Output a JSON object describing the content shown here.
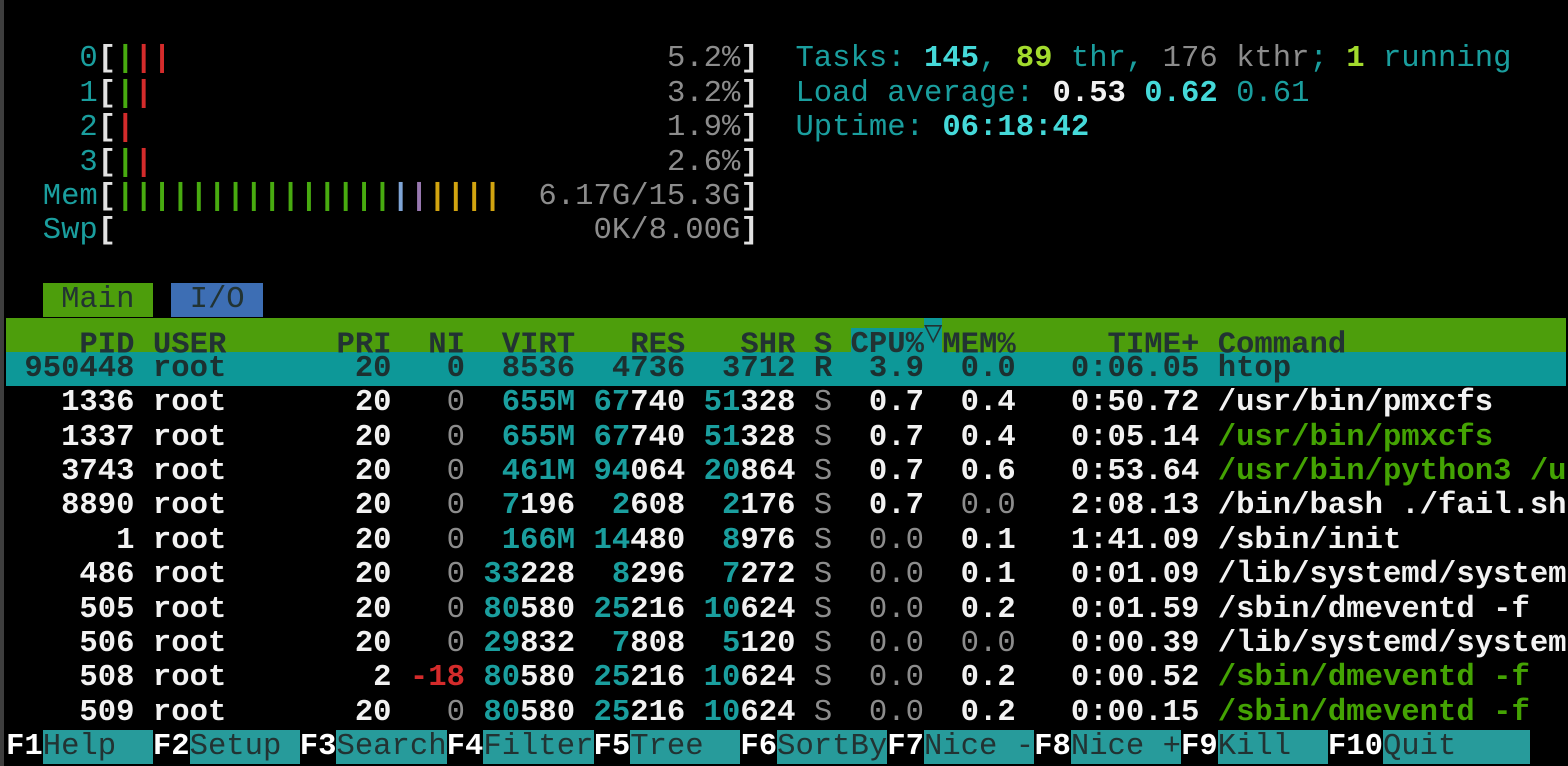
{
  "colors": {
    "background": "#000000",
    "text_white": "#f2f2f2",
    "text_gray": "#8c8c8c",
    "teal": "#1a9e9e",
    "bright_cyan": "#45d9d9",
    "lime_green": "#a3db2d",
    "command_green": "#44a303",
    "red": "#d42b2b",
    "header_green_bg": "#4d9e0c",
    "tab_blue_bg": "#3d6eb4",
    "selected_teal_bg": "#0d9898",
    "fkey_teal_bg": "#279b9b",
    "bar_green": "#48ab10",
    "bar_blue": "#7fa5d6",
    "bar_purple": "#9878b0",
    "bar_yellow": "#d2a410"
  },
  "meters": {
    "cpus": [
      {
        "label": "0",
        "bars": [
          "green",
          "red",
          "red"
        ],
        "value": "5.2%"
      },
      {
        "label": "1",
        "bars": [
          "green",
          "red"
        ],
        "value": "3.2%"
      },
      {
        "label": "2",
        "bars": [
          "red"
        ],
        "value": "1.9%"
      },
      {
        "label": "3",
        "bars": [
          "green",
          "red"
        ],
        "value": "2.6%"
      }
    ],
    "mem": {
      "label": "Mem",
      "bar_counts": {
        "green": 15,
        "blue": 1,
        "purple": 1,
        "yellow": 4
      },
      "value": "6.17G/15.3G"
    },
    "swp": {
      "label": "Swp",
      "bar_counts": {},
      "value": "0K/8.00G"
    }
  },
  "summary": {
    "tasks": {
      "label": "Tasks: ",
      "count": "145",
      "sep1": ", ",
      "threads": "89",
      "threads_label": " thr",
      "sep2": ", ",
      "kthreads": "176 kthr",
      "sep3": "; ",
      "running": "1",
      "running_label": " running"
    },
    "load": {
      "label": "Load average: ",
      "one": "0.53",
      "five": "0.62",
      "fifteen": "0.61"
    },
    "uptime": {
      "label": "Uptime: ",
      "value": "06:18:42"
    }
  },
  "tabs": [
    {
      "label": "Main",
      "active": true
    },
    {
      "label": "I/O",
      "active": false
    }
  ],
  "table": {
    "columns": [
      "PID",
      "USER",
      "PRI",
      "NI",
      "VIRT",
      "RES",
      "SHR",
      "S",
      "CPU%",
      "MEM%",
      "TIME+",
      "Command"
    ],
    "sort": {
      "column": "CPU%",
      "indicator": "▽"
    },
    "rows": [
      {
        "pid": "950448",
        "user": "root",
        "pri": "20",
        "ni": "0",
        "virt": "8536",
        "res": "4736",
        "shr": "3712",
        "s": "R",
        "cpu": "3.9",
        "mem": "0.0",
        "time": "0:06.05",
        "command": "htop",
        "selected": true,
        "command_green": false
      },
      {
        "pid": "1336",
        "user": "root",
        "pri": "20",
        "ni": "0",
        "virt": "655M",
        "res": "67740",
        "shr": "51328",
        "s": "S",
        "cpu": "0.7",
        "mem": "0.4",
        "time": "0:50.72",
        "command": "/usr/bin/pmxcfs",
        "selected": false,
        "command_green": false
      },
      {
        "pid": "1337",
        "user": "root",
        "pri": "20",
        "ni": "0",
        "virt": "655M",
        "res": "67740",
        "shr": "51328",
        "s": "S",
        "cpu": "0.7",
        "mem": "0.4",
        "time": "0:05.14",
        "command": "/usr/bin/pmxcfs",
        "selected": false,
        "command_green": true
      },
      {
        "pid": "3743",
        "user": "root",
        "pri": "20",
        "ni": "0",
        "virt": "461M",
        "res": "94064",
        "shr": "20864",
        "s": "S",
        "cpu": "0.7",
        "mem": "0.6",
        "time": "0:53.64",
        "command": "/usr/bin/python3 /u",
        "selected": false,
        "command_green": true
      },
      {
        "pid": "8890",
        "user": "root",
        "pri": "20",
        "ni": "0",
        "virt": "7196",
        "res": "2608",
        "shr": "2176",
        "s": "S",
        "cpu": "0.7",
        "mem": "0.0",
        "time": "2:08.13",
        "command": "/bin/bash ./fail.sh",
        "selected": false,
        "command_green": false
      },
      {
        "pid": "1",
        "user": "root",
        "pri": "20",
        "ni": "0",
        "virt": "166M",
        "res": "14480",
        "shr": "8976",
        "s": "S",
        "cpu": "0.0",
        "mem": "0.1",
        "time": "1:41.09",
        "command": "/sbin/init",
        "selected": false,
        "command_green": false
      },
      {
        "pid": "486",
        "user": "root",
        "pri": "20",
        "ni": "0",
        "virt": "33228",
        "res": "8296",
        "shr": "7272",
        "s": "S",
        "cpu": "0.0",
        "mem": "0.1",
        "time": "0:01.09",
        "command": "/lib/systemd/system",
        "selected": false,
        "command_green": false
      },
      {
        "pid": "505",
        "user": "root",
        "pri": "20",
        "ni": "0",
        "virt": "80580",
        "res": "25216",
        "shr": "10624",
        "s": "S",
        "cpu": "0.0",
        "mem": "0.2",
        "time": "0:01.59",
        "command": "/sbin/dmeventd -f",
        "selected": false,
        "command_green": false
      },
      {
        "pid": "506",
        "user": "root",
        "pri": "20",
        "ni": "0",
        "virt": "29832",
        "res": "7808",
        "shr": "5120",
        "s": "S",
        "cpu": "0.0",
        "mem": "0.0",
        "time": "0:00.39",
        "command": "/lib/systemd/system",
        "selected": false,
        "command_green": false
      },
      {
        "pid": "508",
        "user": "root",
        "pri": "2",
        "ni": "-18",
        "virt": "80580",
        "res": "25216",
        "shr": "10624",
        "s": "S",
        "cpu": "0.0",
        "mem": "0.2",
        "time": "0:00.52",
        "command": "/sbin/dmeventd -f",
        "selected": false,
        "command_green": true
      },
      {
        "pid": "509",
        "user": "root",
        "pri": "20",
        "ni": "0",
        "virt": "80580",
        "res": "25216",
        "shr": "10624",
        "s": "S",
        "cpu": "0.0",
        "mem": "0.2",
        "time": "0:00.15",
        "command": "/sbin/dmeventd -f",
        "selected": false,
        "command_green": true
      }
    ]
  },
  "fkeys": [
    {
      "key": "F1",
      "label": "Help"
    },
    {
      "key": "F2",
      "label": "Setup"
    },
    {
      "key": "F3",
      "label": "Search"
    },
    {
      "key": "F4",
      "label": "Filter"
    },
    {
      "key": "F5",
      "label": "Tree"
    },
    {
      "key": "F6",
      "label": "SortBy"
    },
    {
      "key": "F7",
      "label": "Nice -"
    },
    {
      "key": "F8",
      "label": "Nice +"
    },
    {
      "key": "F9",
      "label": "Kill"
    },
    {
      "key": "F10",
      "label": "Quit"
    }
  ]
}
